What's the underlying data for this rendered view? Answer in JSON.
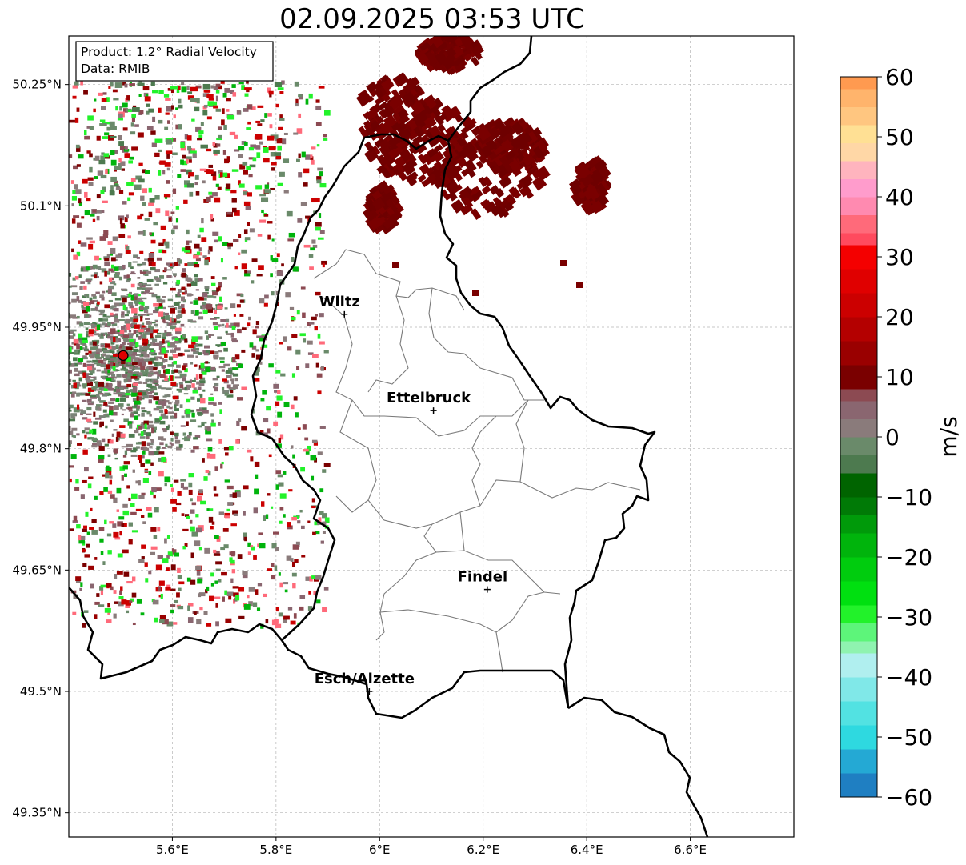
{
  "title": "02.09.2025 03:53 UTC",
  "info_box": {
    "product": "Product: 1.2° Radial Velocity",
    "data": "Data: RMIB"
  },
  "map": {
    "lon_range": [
      5.4,
      6.8
    ],
    "lat_range": [
      49.32,
      50.31
    ],
    "x_ticks": [
      {
        "value": 5.6,
        "label": "5.6°E"
      },
      {
        "value": 5.8,
        "label": "5.8°E"
      },
      {
        "value": 6.0,
        "label": "6°E"
      },
      {
        "value": 6.2,
        "label": "6.2°E"
      },
      {
        "value": 6.4,
        "label": "6.4°E"
      },
      {
        "value": 6.6,
        "label": "6.6°E"
      }
    ],
    "y_ticks": [
      {
        "value": 50.25,
        "label": "50.25°N"
      },
      {
        "value": 50.1,
        "label": "50.1°N"
      },
      {
        "value": 49.95,
        "label": "49.95°N"
      },
      {
        "value": 49.8,
        "label": "49.8°N"
      },
      {
        "value": 49.65,
        "label": "49.65°N"
      },
      {
        "value": 49.5,
        "label": "49.5°N"
      },
      {
        "value": 49.35,
        "label": "49.35°N"
      }
    ],
    "grid": true,
    "radar_site": {
      "lon": 5.505,
      "lat": 49.915
    },
    "cities": [
      {
        "name": "Wiltz",
        "lon": 5.932,
        "lat": 49.966
      },
      {
        "name": "Ettelbruck",
        "lon": 6.104,
        "lat": 49.847
      },
      {
        "name": "Findel",
        "lon": 6.208,
        "lat": 49.626
      },
      {
        "name": "Esch/Alzette",
        "lon": 5.98,
        "lat": 49.5
      }
    ]
  },
  "colorbar": {
    "label": "m/s",
    "min": -60,
    "max": 60,
    "ticks": [
      {
        "value": 60,
        "label": "60"
      },
      {
        "value": 50,
        "label": "50"
      },
      {
        "value": 40,
        "label": "40"
      },
      {
        "value": 30,
        "label": "30"
      },
      {
        "value": 20,
        "label": "20"
      },
      {
        "value": 10,
        "label": "10"
      },
      {
        "value": 0,
        "label": "0"
      },
      {
        "value": -10,
        "label": "−10"
      },
      {
        "value": -20,
        "label": "−20"
      },
      {
        "value": -30,
        "label": "−30"
      },
      {
        "value": -40,
        "label": "−40"
      },
      {
        "value": -50,
        "label": "−50"
      },
      {
        "value": -60,
        "label": "−60"
      }
    ],
    "stops": [
      {
        "from": -60,
        "to": -56,
        "color": "#1f7fc2"
      },
      {
        "from": -56,
        "to": -52,
        "color": "#24a9d4"
      },
      {
        "from": -52,
        "to": -48,
        "color": "#2ed9e0"
      },
      {
        "from": -48,
        "to": -44,
        "color": "#52e2e2"
      },
      {
        "from": -44,
        "to": -40,
        "color": "#80e8e8"
      },
      {
        "from": -40,
        "to": -36,
        "color": "#b0efef"
      },
      {
        "from": -36,
        "to": -34,
        "color": "#8ff3b0"
      },
      {
        "from": -34,
        "to": -31,
        "color": "#5df57a"
      },
      {
        "from": -31,
        "to": -28,
        "color": "#22f22a"
      },
      {
        "from": -28,
        "to": -24,
        "color": "#00e010"
      },
      {
        "from": -24,
        "to": -20,
        "color": "#00cc0e"
      },
      {
        "from": -20,
        "to": -16,
        "color": "#00b40c"
      },
      {
        "from": -16,
        "to": -13,
        "color": "#009a0a"
      },
      {
        "from": -13,
        "to": -10,
        "color": "#007a06"
      },
      {
        "from": -10,
        "to": -6,
        "color": "#006400"
      },
      {
        "from": -6,
        "to": -3,
        "color": "#4d7a4f"
      },
      {
        "from": -3,
        "to": 0,
        "color": "#6a8a6a"
      },
      {
        "from": 0,
        "to": 3,
        "color": "#8a7b7b"
      },
      {
        "from": 3,
        "to": 6,
        "color": "#8a6670"
      },
      {
        "from": 6,
        "to": 8,
        "color": "#8c4a52"
      },
      {
        "from": 8,
        "to": 12,
        "color": "#7a0000"
      },
      {
        "from": 12,
        "to": 16,
        "color": "#9a0000"
      },
      {
        "from": 16,
        "to": 20,
        "color": "#b40000"
      },
      {
        "from": 20,
        "to": 24,
        "color": "#cc0000"
      },
      {
        "from": 24,
        "to": 28,
        "color": "#e00000"
      },
      {
        "from": 28,
        "to": 32,
        "color": "#f40000"
      },
      {
        "from": 32,
        "to": 34,
        "color": "#ff4a5e"
      },
      {
        "from": 34,
        "to": 37,
        "color": "#ff6a7a"
      },
      {
        "from": 37,
        "to": 40,
        "color": "#ff8ab0"
      },
      {
        "from": 40,
        "to": 43,
        "color": "#ff9ccc"
      },
      {
        "from": 43,
        "to": 46,
        "color": "#ffb4be"
      },
      {
        "from": 46,
        "to": 49,
        "color": "#ffd7a6"
      },
      {
        "from": 49,
        "to": 52,
        "color": "#ffe094"
      },
      {
        "from": 52,
        "to": 55,
        "color": "#ffc680"
      },
      {
        "from": 55,
        "to": 58,
        "color": "#ffb46c"
      },
      {
        "from": 58,
        "to": 60,
        "color": "#ff9a50"
      }
    ]
  }
}
